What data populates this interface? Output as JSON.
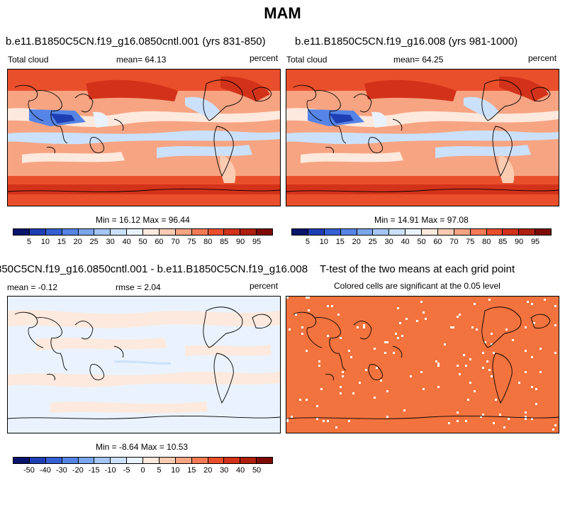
{
  "figure": {
    "title": "MAM"
  },
  "panels": [
    {
      "title": "b.e11.B1850C5CN.f19_g16.0850cntl.001 (yrs 831-850)",
      "left_label": "Total cloud",
      "center_label": "mean=  64.13",
      "right_label": "percent",
      "stats": "Min =  16.12 Max =  96.44"
    },
    {
      "title": "b.e11.B1850C5CN.f19_g16.008 (yrs 981-1000)",
      "left_label": "Total cloud",
      "center_label": "mean=  64.25",
      "right_label": "percent",
      "stats": "Min =  14.91 Max =  97.08"
    },
    {
      "title": "850C5CN.f19_g16.0850cntl.001 - b.e11.B1850C5CN.f19_g16.008",
      "left_label": "mean =  -0.12",
      "center_label": "rmse =   2.04",
      "right_label": "percent",
      "stats": "Min =  -8.64 Max =  10.53"
    },
    {
      "title": "T-test of the two means at each grid point",
      "subtitle": "Colored cells are significant at the 0.05 level"
    }
  ],
  "colorbars": {
    "cloud": {
      "labels": [
        "5",
        "10",
        "15",
        "20",
        "25",
        "30",
        "40",
        "50",
        "60",
        "70",
        "75",
        "80",
        "85",
        "90",
        "95"
      ],
      "colors": [
        "#08146b",
        "#1e3fb4",
        "#3560d4",
        "#5584e6",
        "#7aa6ef",
        "#a4c6f6",
        "#cbe1fb",
        "#eaf3fd",
        "#fde9dd",
        "#fbccb2",
        "#f7a483",
        "#f37a55",
        "#ea4f2b",
        "#d3321a",
        "#b01f0e",
        "#7e0a04"
      ]
    },
    "diff": {
      "labels": [
        "-50",
        "-40",
        "-30",
        "-20",
        "-15",
        "-10",
        "-5",
        "0",
        "5",
        "10",
        "15",
        "20",
        "30",
        "40",
        "50"
      ],
      "colors": [
        "#08146b",
        "#1e3fb4",
        "#3560d4",
        "#5584e6",
        "#7aa6ef",
        "#a4c6f6",
        "#cbe1fb",
        "#eaf3fd",
        "#fde9dd",
        "#fbccb2",
        "#f7a483",
        "#f37a55",
        "#ea4f2b",
        "#d3321a",
        "#b01f0e",
        "#7e0a04"
      ]
    },
    "ttest_fill_color": "#f3733e"
  }
}
